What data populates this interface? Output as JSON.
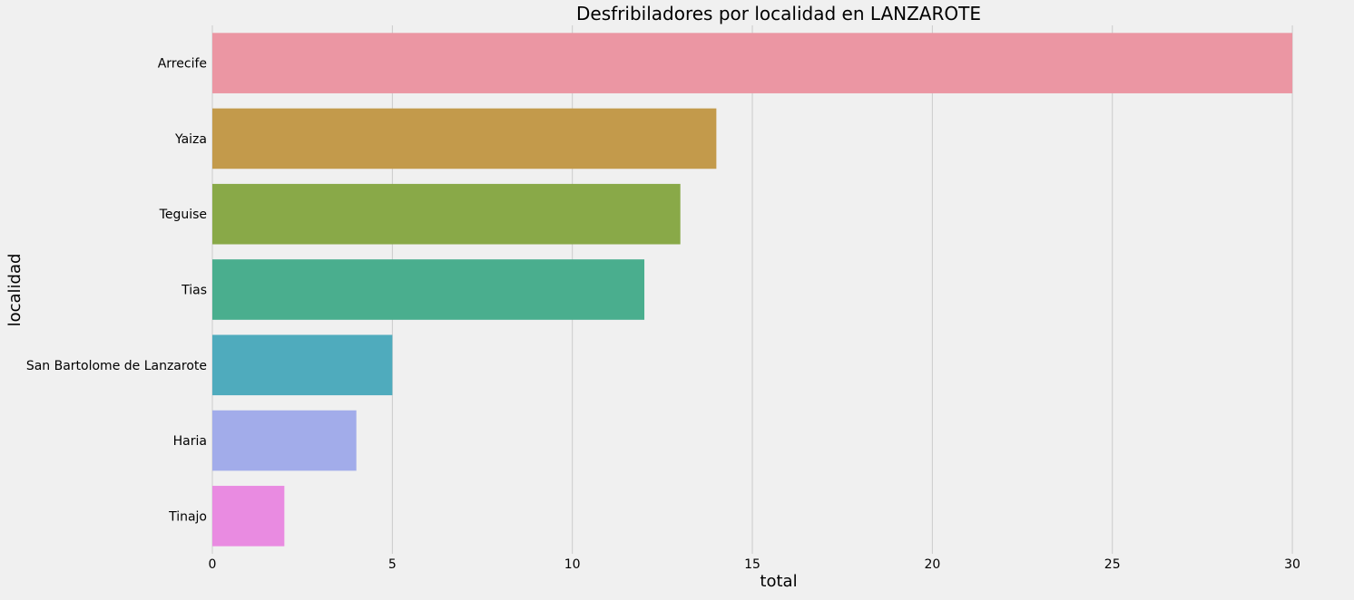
{
  "chart_data": {
    "type": "bar",
    "orientation": "horizontal",
    "title": "Desfribiladores por localidad en LANZAROTE",
    "xlabel": "total",
    "ylabel": "localidad",
    "categories": [
      "Arrecife",
      "Yaiza",
      "Teguise",
      "Tias",
      "San Bartolome de Lanzarote",
      "Haria",
      "Tinajo"
    ],
    "values": [
      30,
      14,
      13,
      12,
      5,
      4,
      2
    ],
    "colors": [
      "#eb96a3",
      "#c39a4b",
      "#89a948",
      "#4aae8e",
      "#4fabbd",
      "#a2acea",
      "#e98be1"
    ],
    "xlim": [
      0,
      30.2
    ],
    "xticks": [
      0,
      5,
      10,
      15,
      20,
      25,
      30
    ],
    "grid": "vertical"
  },
  "background": "#f0f0f0",
  "grid_color": "#cbcbcb"
}
